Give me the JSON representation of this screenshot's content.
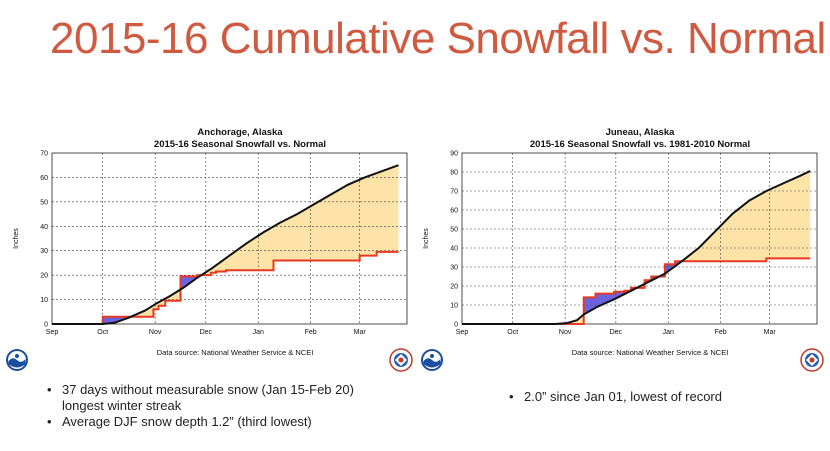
{
  "slide": {
    "title": "2015-16 Cumulative Snowfall vs. Normal",
    "left_bullets": [
      "37 days without measurable snow (Jan 15-Feb 20) longest winter streak",
      "Average DJF snow depth 1.2” (third lowest)"
    ],
    "right_bullets": [
      "2.0” since Jan 01, lowest of record"
    ]
  },
  "colors": {
    "title": "#d05a3f",
    "normal_line": "#111111",
    "observed_line": "#e63a22",
    "below_normal_fill": "#fde3a7",
    "above_normal_fill": "#6b63e0"
  },
  "logos": [
    "noaa-logo",
    "nws-logo"
  ],
  "chart_data": [
    {
      "type": "line",
      "title_line1": "Anchorage, Alaska",
      "title_line2": "2015-16 Seasonal Snowfall vs. Normal",
      "ylabel": "Inches",
      "source": "Data source: National Weather Service & NCEI",
      "ylim": [
        0,
        70
      ],
      "yticks": [
        0,
        10,
        20,
        30,
        40,
        50,
        60,
        70
      ],
      "xlim": [
        0,
        210
      ],
      "xticks": [
        {
          "label": "Sep",
          "x": 0
        },
        {
          "label": "Oct",
          "x": 30
        },
        {
          "label": "Nov",
          "x": 61
        },
        {
          "label": "Dec",
          "x": 91
        },
        {
          "label": "Jan",
          "x": 122
        },
        {
          "label": "Feb",
          "x": 153
        },
        {
          "label": "Mar",
          "x": 182
        }
      ],
      "grid": true,
      "series": [
        {
          "role": "normal",
          "x": [
            0,
            30,
            37,
            45,
            55,
            62,
            70,
            78,
            85,
            95,
            105,
            115,
            125,
            135,
            145,
            155,
            165,
            175,
            185,
            195,
            205
          ],
          "y": [
            0,
            0,
            0.5,
            2.5,
            5.5,
            8.5,
            11.5,
            15,
            18.5,
            23,
            28,
            33,
            37.5,
            41.5,
            45,
            49,
            53,
            57,
            60,
            62.5,
            65
          ]
        },
        {
          "role": "observed",
          "x": [
            0,
            30,
            30,
            60,
            60,
            63,
            63,
            67,
            67,
            76,
            76,
            86,
            86,
            94,
            94,
            97,
            97,
            103,
            103,
            131,
            131,
            182,
            182,
            192,
            192,
            205
          ],
          "y": [
            0,
            0,
            3,
            3,
            6,
            6,
            7.5,
            7.5,
            9.5,
            9.5,
            19.5,
            19.5,
            20,
            20,
            21,
            21,
            21.5,
            21.5,
            22,
            22,
            26,
            26,
            28,
            28,
            29.5,
            29.5
          ]
        }
      ]
    },
    {
      "type": "line",
      "title_line1": "Juneau, Alaska",
      "title_line2": "2015-16 Seasonal Snowfall vs. 1981-2010 Normal",
      "ylabel": "Inches",
      "source": "Data source: National Weather Service & NCEI",
      "ylim": [
        0,
        90
      ],
      "yticks": [
        0,
        10,
        20,
        30,
        40,
        50,
        60,
        70,
        80,
        90
      ],
      "xlim": [
        0,
        210
      ],
      "xticks": [
        {
          "label": "Sep",
          "x": 0
        },
        {
          "label": "Oct",
          "x": 30
        },
        {
          "label": "Nov",
          "x": 61
        },
        {
          "label": "Dec",
          "x": 91
        },
        {
          "label": "Jan",
          "x": 122
        },
        {
          "label": "Feb",
          "x": 153
        },
        {
          "label": "Mar",
          "x": 182
        }
      ],
      "grid": true,
      "series": [
        {
          "role": "normal",
          "x": [
            0,
            55,
            62,
            68,
            72,
            80,
            90,
            100,
            110,
            120,
            130,
            140,
            150,
            160,
            170,
            180,
            190,
            200,
            206
          ],
          "y": [
            0,
            0,
            0.5,
            2,
            5,
            9,
            13,
            17.5,
            22,
            26.5,
            33,
            40,
            49,
            58,
            65,
            70,
            74,
            78,
            80.5
          ]
        },
        {
          "role": "observed",
          "x": [
            0,
            72,
            72,
            79,
            79,
            90,
            90,
            96,
            96,
            100,
            100,
            108,
            108,
            112,
            112,
            120,
            120,
            126,
            126,
            160,
            160,
            180,
            180,
            206
          ],
          "y": [
            0,
            0,
            14,
            14,
            16,
            16,
            17,
            17,
            17.5,
            17.5,
            19,
            19,
            23,
            23,
            25,
            25,
            31.5,
            31.5,
            33,
            33,
            33,
            33,
            34.5,
            34.5
          ]
        }
      ]
    }
  ]
}
